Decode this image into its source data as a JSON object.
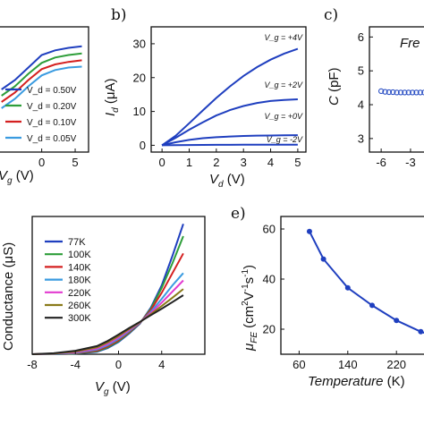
{
  "chart_data": [
    {
      "id": "a",
      "type": "line",
      "panel_label": "",
      "xlabel": "V_g (V)",
      "ylabel": "",
      "xticks": [
        "0",
        "5"
      ],
      "xlim": [
        -6.5,
        7
      ],
      "ylim": [
        0,
        40
      ],
      "x": [
        -6,
        -4,
        -2,
        0,
        2,
        4,
        6
      ],
      "series": [
        {
          "name": "V_d = 0.50V",
          "color": "#1f3fbf",
          "values": [
            20,
            23,
            27,
            31,
            32.5,
            33.3,
            33.8
          ]
        },
        {
          "name": "V_d = 0.20V",
          "color": "#2e9e3a",
          "values": [
            18,
            21,
            25,
            28.5,
            30.2,
            31,
            31.5
          ]
        },
        {
          "name": "V_d = 0.10V",
          "color": "#d42020",
          "values": [
            16,
            19,
            23,
            26.5,
            28,
            28.8,
            29.3
          ]
        },
        {
          "name": "V_d = 0.05V",
          "color": "#3a9be0",
          "values": [
            14,
            17,
            21,
            24.5,
            26.2,
            27,
            27.3
          ]
        }
      ]
    },
    {
      "id": "b",
      "type": "line",
      "panel_label": "b)",
      "xlabel": "V_d (V)",
      "ylabel": "I_d (μA)",
      "xticks": [
        "0",
        "1",
        "2",
        "3",
        "4",
        "5"
      ],
      "yticks": [
        "0",
        "10",
        "20",
        "30"
      ],
      "xlim": [
        -0.4,
        5.3
      ],
      "ylim": [
        -2,
        35
      ],
      "x": [
        0,
        0.5,
        1,
        1.5,
        2,
        2.5,
        3,
        3.5,
        4,
        4.5,
        5
      ],
      "series": [
        {
          "name": "V_g = +4V",
          "color": "#1f3fbf",
          "values": [
            0,
            2.8,
            6.5,
            10.3,
            14,
            17.4,
            20.5,
            23.1,
            25.3,
            27.1,
            28.5
          ]
        },
        {
          "name": "V_g = +2V",
          "color": "#1f3fbf",
          "values": [
            0,
            2.2,
            4.6,
            6.8,
            8.8,
            10.4,
            11.6,
            12.5,
            13.1,
            13.4,
            13.6
          ]
        },
        {
          "name": "V_g = +0V",
          "color": "#1f3fbf",
          "values": [
            0,
            0.9,
            1.6,
            2.1,
            2.4,
            2.6,
            2.75,
            2.85,
            2.9,
            2.95,
            3.0
          ]
        },
        {
          "name": "V_g = -2V",
          "color": "#1f3fbf",
          "values": [
            0,
            0.05,
            0.1,
            0.12,
            0.14,
            0.15,
            0.16,
            0.17,
            0.18,
            0.19,
            0.2
          ]
        }
      ]
    },
    {
      "id": "c",
      "type": "scatter",
      "panel_label": "c)",
      "xlabel": "",
      "ylabel": "C (pF)",
      "annotation": "Fre",
      "xticks": [
        "-6",
        "-3"
      ],
      "yticks": [
        "3",
        "4",
        "5",
        "6"
      ],
      "xlim": [
        -7.2,
        -0.8
      ],
      "ylim": [
        2.6,
        6.3
      ],
      "x": [
        -6,
        -5.6,
        -5.2,
        -4.8,
        -4.4,
        -4,
        -3.6,
        -3.2,
        -2.8,
        -2.4,
        -2,
        -1.6,
        -1.2
      ],
      "series": [
        {
          "name": "",
          "color": "#2a4fc4",
          "values": [
            4.4,
            4.38,
            4.37,
            4.37,
            4.36,
            4.36,
            4.36,
            4.36,
            4.36,
            4.36,
            4.36,
            4.36,
            4.36
          ]
        }
      ]
    },
    {
      "id": "d",
      "type": "line",
      "panel_label": "",
      "xlabel": "V_g (V)",
      "ylabel": "",
      "xticks": [
        "-8",
        "-4",
        "0",
        "4"
      ],
      "xlim": [
        -8,
        8
      ],
      "ylim": [
        0,
        56
      ],
      "x": [
        -8,
        -6,
        -4,
        -2,
        -1,
        0,
        1,
        2,
        3,
        4,
        5,
        6
      ],
      "series": [
        {
          "name": "77K",
          "color": "#1f3fbf",
          "values": [
            0,
            0,
            0.2,
            1,
            2.5,
            5,
            8.5,
            12.5,
            19,
            28,
            40,
            53
          ]
        },
        {
          "name": "100K",
          "color": "#2e9e3a",
          "values": [
            0,
            0,
            0.3,
            1.2,
            2.8,
            5.3,
            8.8,
            12.7,
            18.5,
            27,
            37,
            48
          ]
        },
        {
          "name": "140K",
          "color": "#d42020",
          "values": [
            0,
            0.1,
            0.4,
            1.5,
            3.2,
            5.7,
            9.1,
            12.8,
            18,
            25,
            33,
            41
          ]
        },
        {
          "name": "180K",
          "color": "#3a9be0",
          "values": [
            0,
            0.1,
            0.6,
            1.9,
            3.7,
            6.2,
            9.5,
            12.9,
            17.3,
            22.5,
            28,
            33
          ]
        },
        {
          "name": "220K",
          "color": "#e23bd0",
          "values": [
            0,
            0.2,
            0.8,
            2.3,
            4.2,
            6.8,
            9.9,
            13,
            16.8,
            21,
            25.5,
            30
          ]
        },
        {
          "name": "260K",
          "color": "#8a7a1a",
          "values": [
            0,
            0.3,
            1.1,
            2.8,
            4.8,
            7.4,
            10.3,
            13.1,
            16.3,
            19.6,
            23,
            26.5
          ]
        },
        {
          "name": "300K",
          "color": "#222222",
          "values": [
            0,
            0.4,
            1.4,
            3.3,
            5.4,
            8,
            10.7,
            13.2,
            15.9,
            18.5,
            21.2,
            24
          ]
        }
      ]
    },
    {
      "id": "e",
      "type": "line",
      "panel_label": "e)",
      "xlabel": "Temperature (K)",
      "ylabel": "μ_FE (cm²V⁻¹s⁻¹)",
      "xticks": [
        "60",
        "140",
        "220"
      ],
      "yticks": [
        "20",
        "40",
        "60"
      ],
      "xlim": [
        30,
        280
      ],
      "ylim": [
        10,
        65
      ],
      "x": [
        77,
        100,
        140,
        180,
        220,
        260,
        300
      ],
      "series": [
        {
          "name": "",
          "color": "#1f3fbf",
          "values": [
            59,
            48,
            36.5,
            29.5,
            23.5,
            19,
            16
          ]
        }
      ]
    }
  ]
}
